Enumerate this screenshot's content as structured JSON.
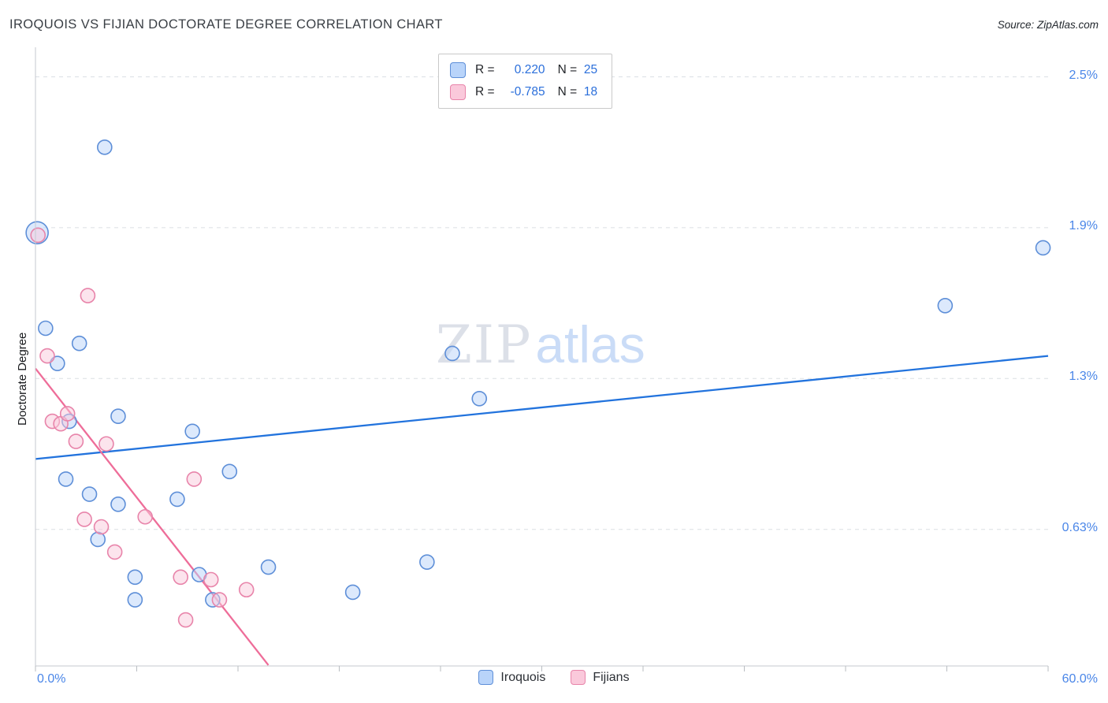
{
  "header": {
    "title": "IROQUOIS VS FIJIAN DOCTORATE DEGREE CORRELATION CHART",
    "source": "Source: ZipAtlas.com"
  },
  "watermark": {
    "zip": "ZIP",
    "atlas": "atlas"
  },
  "legend_box": {
    "rows": [
      {
        "r_label": "R =",
        "r_value": "0.220",
        "n_label": "N =",
        "n_value": "25"
      },
      {
        "r_label": "R =",
        "r_value": "-0.785",
        "n_label": "N =",
        "n_value": "18"
      }
    ]
  },
  "axes": {
    "y_axis_label": "Doctorate Degree",
    "x_min_label": "0.0%",
    "x_max_label": "60.0%"
  },
  "bottom_legend": {
    "items": [
      {
        "label": "Iroquois"
      },
      {
        "label": "Fijians"
      }
    ]
  },
  "chart_data": {
    "type": "scatter",
    "title": "Iroquois vs Fijian Doctorate Degree Correlation Chart",
    "xlabel": "",
    "ylabel": "Doctorate Degree",
    "xlim": [
      0,
      60
    ],
    "ylim": [
      0,
      2.6
    ],
    "x_unit": "%",
    "y_unit": "%",
    "grid": "horizontal-dashed",
    "legend_position": "bottom-center",
    "y_ticks": [
      {
        "label": "2.5%",
        "value": 2.5,
        "pos": 2.5
      },
      {
        "label": "1.9%",
        "value": 1.9,
        "pos": 1.9
      },
      {
        "label": "1.3%",
        "value": 1.3,
        "pos": 1.3
      },
      {
        "label": "0.63%",
        "value": 0.63,
        "pos": 0.7
      }
    ],
    "x_ticks": [
      0,
      6,
      12,
      18,
      24,
      30,
      36,
      42,
      48,
      54,
      60
    ],
    "series": [
      {
        "name": "Iroquois",
        "R": 0.22,
        "N": 25,
        "fill": "#b9d4fa",
        "stroke": "#5e8fd8",
        "trend_color": "#2273dd",
        "trend": {
          "x1": 0,
          "y1": 0.98,
          "x2": 60,
          "y2": 1.39
        },
        "points": [
          [
            0.1,
            1.88,
            14
          ],
          [
            4.1,
            2.22
          ],
          [
            0.6,
            1.5
          ],
          [
            2.6,
            1.44
          ],
          [
            1.3,
            1.36
          ],
          [
            24.7,
            1.4
          ],
          [
            26.3,
            1.22
          ],
          [
            4.9,
            1.15
          ],
          [
            2.0,
            1.13
          ],
          [
            9.3,
            1.09
          ],
          [
            1.8,
            0.9
          ],
          [
            11.5,
            0.93
          ],
          [
            3.2,
            0.84
          ],
          [
            8.4,
            0.82
          ],
          [
            4.9,
            0.8
          ],
          [
            3.7,
            0.66
          ],
          [
            9.7,
            0.52
          ],
          [
            13.8,
            0.55
          ],
          [
            23.2,
            0.57
          ],
          [
            5.9,
            0.51
          ],
          [
            5.9,
            0.42
          ],
          [
            10.5,
            0.42
          ],
          [
            18.8,
            0.45
          ],
          [
            53.9,
            1.59
          ],
          [
            59.7,
            1.82
          ]
        ]
      },
      {
        "name": "Fijians",
        "R": -0.785,
        "N": 18,
        "fill": "#fac9db",
        "stroke": "#e884aa",
        "trend_color": "#ee6d99",
        "trend": {
          "x1": 0,
          "y1": 1.34,
          "x2": 13.8,
          "y2": 0.16
        },
        "points": [
          [
            0.15,
            1.87
          ],
          [
            3.1,
            1.63
          ],
          [
            0.7,
            1.39
          ],
          [
            1.0,
            1.13
          ],
          [
            1.5,
            1.12
          ],
          [
            1.9,
            1.16
          ],
          [
            2.4,
            1.05
          ],
          [
            4.2,
            1.04
          ],
          [
            2.9,
            0.74
          ],
          [
            3.9,
            0.71
          ],
          [
            4.7,
            0.61
          ],
          [
            6.5,
            0.75
          ],
          [
            9.4,
            0.9
          ],
          [
            8.6,
            0.51
          ],
          [
            10.4,
            0.5
          ],
          [
            10.9,
            0.42
          ],
          [
            12.5,
            0.46
          ],
          [
            8.9,
            0.34
          ]
        ]
      }
    ]
  }
}
